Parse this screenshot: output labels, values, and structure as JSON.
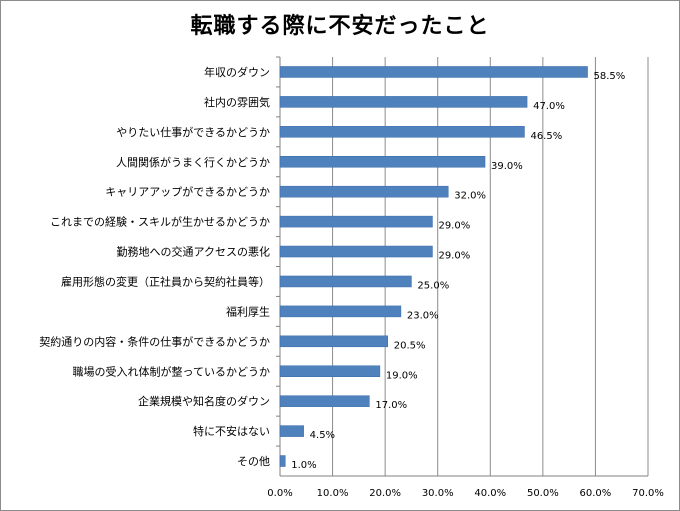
{
  "chart_data": {
    "type": "bar",
    "orientation": "horizontal",
    "title": "転職する際に不安だったこと",
    "categories": [
      "年収のダウン",
      "社内の雰囲気",
      "やりたい仕事ができるかどうか",
      "人間関係がうまく行くかどうか",
      "キャリアアップができるかどうか",
      "これまでの経験・スキルが生かせるかどうか",
      "勤務地への交通アクセスの悪化",
      "雇用形態の変更（正社員から契約社員等）",
      "福利厚生",
      "契約通りの内容・条件の仕事ができるかどうか",
      "職場の受入れ体制が整っているかどうか",
      "企業規模や知名度のダウン",
      "特に不安はない",
      "その他"
    ],
    "values": [
      58.5,
      47.0,
      46.5,
      39.0,
      32.0,
      29.0,
      29.0,
      25.0,
      23.0,
      20.5,
      19.0,
      17.0,
      4.5,
      1.0
    ],
    "value_labels": [
      "58.5%",
      "47.0%",
      "46.5%",
      "39.0%",
      "32.0%",
      "29.0%",
      "29.0%",
      "25.0%",
      "23.0%",
      "20.5%",
      "19.0%",
      "17.0%",
      "4.5%",
      "1.0%"
    ],
    "xlim": [
      0,
      70
    ],
    "xticks": [
      "0.0%",
      "10.0%",
      "20.0%",
      "30.0%",
      "40.0%",
      "50.0%",
      "60.0%",
      "70.0%"
    ],
    "grid": true,
    "bar_color": "#4f81bd",
    "bar_edge_color": "#3a6aa8",
    "grid_color": "#8c8c8c"
  }
}
